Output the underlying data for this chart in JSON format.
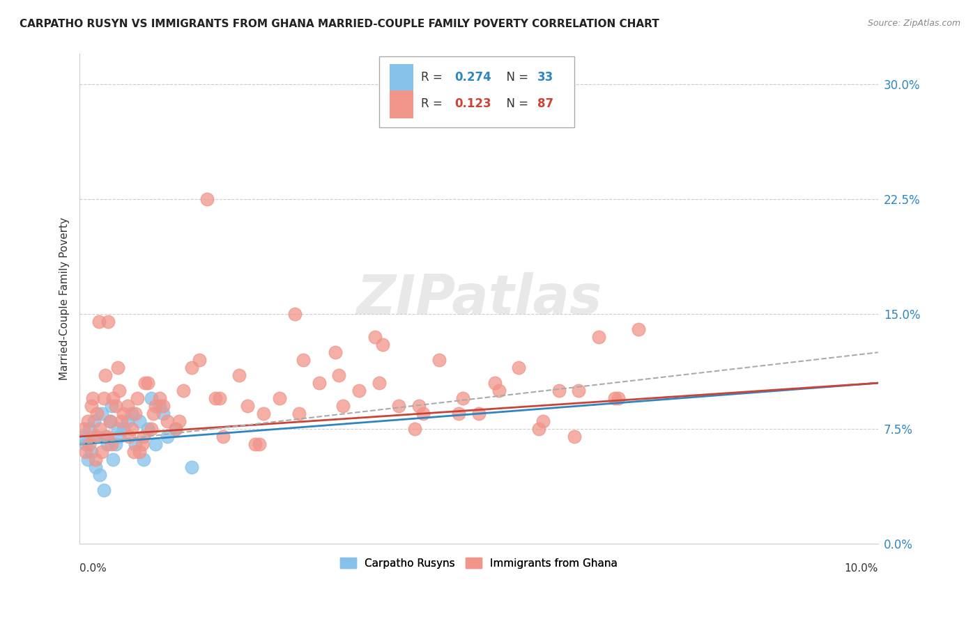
{
  "title": "CARPATHO RUSYN VS IMMIGRANTS FROM GHANA MARRIED-COUPLE FAMILY POVERTY CORRELATION CHART",
  "source": "Source: ZipAtlas.com",
  "ylabel": "Married-Couple Family Poverty",
  "ytick_vals": [
    0.0,
    7.5,
    15.0,
    22.5,
    30.0
  ],
  "xlim": [
    0.0,
    10.0
  ],
  "ylim": [
    0.0,
    32.0
  ],
  "blue_color": "#85c1e9",
  "pink_color": "#f1948a",
  "blue_line_color": "#2e86c1",
  "pink_line_color": "#cb4335",
  "dashed_line_color": "#aaaaaa",
  "blue_scatter_x": [
    0.05,
    0.08,
    0.1,
    0.12,
    0.15,
    0.18,
    0.2,
    0.22,
    0.25,
    0.28,
    0.3,
    0.32,
    0.35,
    0.38,
    0.4,
    0.42,
    0.45,
    0.48,
    0.5,
    0.55,
    0.6,
    0.65,
    0.7,
    0.75,
    0.8,
    0.85,
    0.9,
    0.95,
    1.0,
    1.05,
    1.1,
    1.2,
    1.4
  ],
  "blue_scatter_y": [
    7.0,
    6.5,
    5.5,
    7.5,
    6.0,
    8.0,
    5.0,
    7.0,
    4.5,
    8.5,
    3.5,
    7.0,
    6.5,
    8.0,
    9.0,
    5.5,
    6.5,
    7.5,
    7.0,
    7.5,
    8.0,
    8.5,
    6.5,
    8.0,
    5.5,
    7.5,
    9.5,
    6.5,
    9.0,
    8.5,
    7.0,
    7.5,
    5.0
  ],
  "pink_scatter_x": [
    0.05,
    0.08,
    0.1,
    0.12,
    0.15,
    0.18,
    0.2,
    0.22,
    0.25,
    0.28,
    0.3,
    0.35,
    0.38,
    0.4,
    0.45,
    0.5,
    0.55,
    0.6,
    0.65,
    0.7,
    0.75,
    0.8,
    0.85,
    0.9,
    0.95,
    1.0,
    1.1,
    1.2,
    1.3,
    1.5,
    1.7,
    2.0,
    2.2,
    2.5,
    2.7,
    3.0,
    3.2,
    3.5,
    3.7,
    3.8,
    4.0,
    4.2,
    4.3,
    4.5,
    4.8,
    5.0,
    5.2,
    5.5,
    5.8,
    6.0,
    6.2,
    6.5,
    6.7,
    7.0,
    0.16,
    0.24,
    0.32,
    0.42,
    0.52,
    0.62,
    0.72,
    0.82,
    0.92,
    1.05,
    1.4,
    1.6,
    1.8,
    2.1,
    2.3,
    2.8,
    3.3,
    3.75,
    4.25,
    4.75,
    5.25,
    5.75,
    6.25,
    6.75,
    0.48,
    0.78,
    1.25,
    1.75,
    2.25,
    2.75,
    3.25,
    0.36,
    0.68
  ],
  "pink_scatter_y": [
    7.5,
    6.0,
    8.0,
    6.5,
    9.0,
    7.0,
    5.5,
    8.5,
    7.5,
    6.0,
    9.5,
    7.0,
    8.0,
    6.5,
    9.0,
    10.0,
    8.5,
    9.0,
    7.5,
    8.5,
    6.0,
    7.0,
    10.5,
    7.5,
    9.0,
    9.5,
    8.0,
    7.5,
    10.0,
    12.0,
    9.5,
    11.0,
    6.5,
    9.5,
    15.0,
    10.5,
    12.5,
    10.0,
    13.5,
    13.0,
    9.0,
    7.5,
    8.5,
    12.0,
    9.5,
    8.5,
    10.5,
    11.5,
    8.0,
    10.0,
    7.0,
    13.5,
    9.5,
    14.0,
    9.5,
    14.5,
    11.0,
    9.5,
    8.0,
    7.0,
    9.5,
    10.5,
    8.5,
    9.0,
    11.5,
    22.5,
    7.0,
    9.0,
    8.5,
    12.0,
    9.0,
    10.5,
    9.0,
    8.5,
    10.0,
    7.5,
    10.0,
    9.5,
    11.5,
    6.5,
    8.0,
    9.5,
    6.5,
    8.5,
    11.0,
    14.5,
    6.0
  ],
  "blue_line_x": [
    0.0,
    10.0
  ],
  "blue_line_y": [
    6.5,
    10.5
  ],
  "pink_line_x": [
    0.0,
    10.0
  ],
  "pink_line_y": [
    7.0,
    10.5
  ],
  "dashed_line_x": [
    0.0,
    10.0
  ],
  "dashed_line_y": [
    6.5,
    12.5
  ]
}
